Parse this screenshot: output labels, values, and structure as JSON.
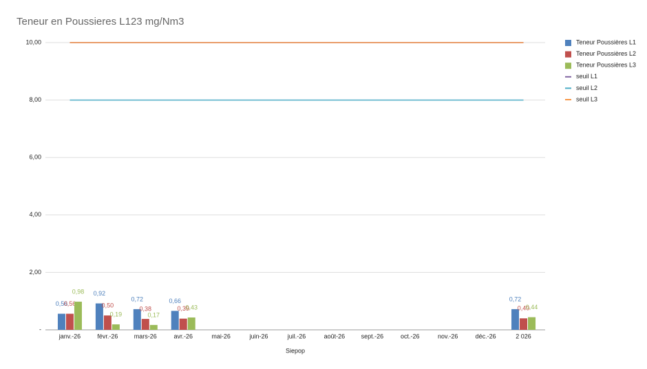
{
  "chart_data": {
    "type": "bar",
    "title": "Teneur en Poussieres L123 mg/Nm3",
    "x_label": "Siepop",
    "categories": [
      "janv.-26",
      "févr.-26",
      "mars-26",
      "avr.-26",
      "mai-26",
      "juin-26",
      "juil.-26",
      "août-26",
      "sept.-26",
      "oct.-26",
      "nov.-26",
      "déc.-26",
      "2 026"
    ],
    "ylim": [
      0,
      10
    ],
    "yticks": [
      {
        "value": 0,
        "label": "-"
      },
      {
        "value": 2,
        "label": "2,00"
      },
      {
        "value": 4,
        "label": "4,00"
      },
      {
        "value": 6,
        "label": "6,00"
      },
      {
        "value": 8,
        "label": "8,00"
      },
      {
        "value": 10,
        "label": "10,00"
      }
    ],
    "grid": true,
    "legend": "right",
    "series": [
      {
        "name": "Teneur Poussières L1",
        "type": "bar",
        "color": "#4f81bd",
        "values": [
          0.56,
          0.92,
          0.72,
          0.66,
          null,
          null,
          null,
          null,
          null,
          null,
          null,
          null,
          0.72
        ],
        "value_labels": [
          "0,56",
          "0,92",
          "0,72",
          "0,66",
          null,
          null,
          null,
          null,
          null,
          null,
          null,
          null,
          "0,72"
        ]
      },
      {
        "name": "Teneur Poussières L2",
        "type": "bar",
        "color": "#c0504d",
        "values": [
          0.56,
          0.5,
          0.38,
          0.39,
          null,
          null,
          null,
          null,
          null,
          null,
          null,
          null,
          0.4
        ],
        "value_labels": [
          "0,56",
          "0,50",
          "0,38",
          "0,39",
          null,
          null,
          null,
          null,
          null,
          null,
          null,
          null,
          "0,40"
        ]
      },
      {
        "name": "Teneur Poussières L3",
        "type": "bar",
        "color": "#9bbb59",
        "values": [
          0.98,
          0.19,
          0.17,
          0.43,
          null,
          null,
          null,
          null,
          null,
          null,
          null,
          null,
          0.44
        ],
        "value_labels": [
          "0,98",
          "0,19",
          "0,17",
          "0,43",
          null,
          null,
          null,
          null,
          null,
          null,
          null,
          null,
          "0,44"
        ]
      },
      {
        "name": "seuil L1",
        "type": "line",
        "color": "#8064a2",
        "values": [
          10,
          10,
          10,
          10,
          10,
          10,
          10,
          10,
          10,
          10,
          10,
          10,
          10
        ]
      },
      {
        "name": "seuil L2",
        "type": "line",
        "color": "#4bacc6",
        "values": [
          8,
          8,
          8,
          8,
          8,
          8,
          8,
          8,
          8,
          8,
          8,
          8,
          8
        ]
      },
      {
        "name": "seuil L3",
        "type": "line",
        "color": "#f79646",
        "values": [
          10,
          10,
          10,
          10,
          10,
          10,
          10,
          10,
          10,
          10,
          10,
          10,
          10
        ]
      }
    ]
  }
}
